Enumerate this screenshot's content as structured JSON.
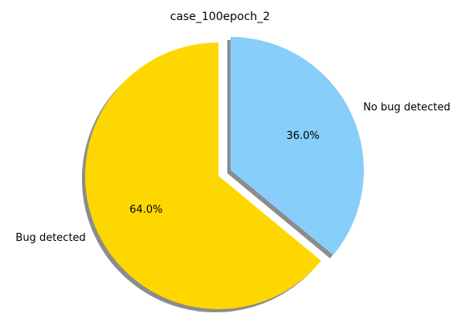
{
  "chart_data": {
    "type": "pie",
    "title": "case_100epoch_2",
    "startangle_deg": 90,
    "clockwise": false,
    "shadow": true,
    "slices": [
      {
        "label": "Bug detected",
        "value": 64.0,
        "pct_text": "64.0%",
        "color": "#FFD700",
        "explode": 0
      },
      {
        "label": "No bug detected",
        "value": 36.0,
        "pct_text": "36.0%",
        "color": "#87CEFA",
        "explode": 0.1
      }
    ]
  }
}
